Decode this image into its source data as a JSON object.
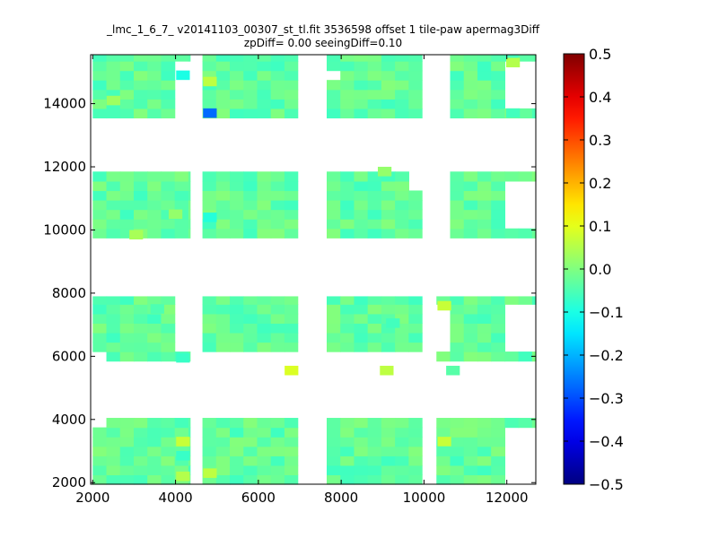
{
  "chart_data": {
    "type": "heatmap",
    "title": "_lmc_1_6_7_ v20141103_00307_st_tl.fit 3536598 offset 1 tile-paw apermag3Diff",
    "subtitle": "zpDiff= 0.00 seeingDiff=0.10",
    "xlabel": "",
    "ylabel": "",
    "xlim": [
      1950,
      12700
    ],
    "ylim": [
      1950,
      15550
    ],
    "xticks": [
      2000,
      4000,
      6000,
      8000,
      10000,
      12000
    ],
    "yticks": [
      2000,
      4000,
      6000,
      8000,
      10000,
      12000,
      14000
    ],
    "colorbar": {
      "colormap": "jet",
      "range": [
        -0.5,
        0.5
      ],
      "ticks": [
        "0.5",
        "0.4",
        "0.3",
        "0.2",
        "0.1",
        "0.0",
        "−0.1",
        "−0.2",
        "−0.3",
        "−0.4",
        "−0.5"
      ]
    },
    "grid": false,
    "cell_size": [
      330,
      300
    ],
    "column_ranges_x": [
      [
        2000,
        4350
      ],
      [
        4650,
        6950
      ],
      [
        7650,
        9950
      ],
      [
        10300,
        12700
      ]
    ],
    "row_ranges_y": [
      [
        1950,
        4050
      ],
      [
        5850,
        7900
      ],
      [
        9750,
        11850
      ],
      [
        13550,
        15550
      ]
    ],
    "typical_value": -0.03,
    "missing_patches": [
      {
        "x": [
          2000,
          2350
        ],
        "y": [
          3650,
          4050
        ]
      },
      {
        "x": [
          4000,
          4350
        ],
        "y": [
          6150,
          7900
        ]
      },
      {
        "x": [
          4000,
          4350
        ],
        "y": [
          13550,
          15250
        ]
      },
      {
        "x": [
          6650,
          6950
        ],
        "y": [
          5850,
          6150
        ]
      },
      {
        "x": [
          7650,
          8000
        ],
        "y": [
          14750,
          15050
        ]
      },
      {
        "x": [
          9500,
          9950
        ],
        "y": [
          11250,
          11850
        ]
      },
      {
        "x": [
          9350,
          9950
        ],
        "y": [
          6150,
          5850
        ]
      },
      {
        "x": [
          10300,
          10650
        ],
        "y": [
          6150,
          7600
        ]
      },
      {
        "x": [
          10300,
          10650
        ],
        "y": [
          9750,
          11850
        ]
      },
      {
        "x": [
          10300,
          10650
        ],
        "y": [
          13550,
          15550
        ]
      },
      {
        "x": [
          12000,
          12700
        ],
        "y": [
          6150,
          7600
        ]
      },
      {
        "x": [
          12000,
          12700
        ],
        "y": [
          1950,
          3650
        ]
      },
      {
        "x": [
          12000,
          12700
        ],
        "y": [
          10150,
          11550
        ]
      },
      {
        "x": [
          12000,
          12700
        ],
        "y": [
          13850,
          15250
        ]
      },
      {
        "x": [
          4650,
          6950
        ],
        "y": [
          5850,
          6150
        ]
      },
      {
        "x": [
          7650,
          9950
        ],
        "y": [
          5850,
          6150
        ]
      },
      {
        "x": [
          2000,
          2350
        ],
        "y": [
          5850,
          6150
        ]
      }
    ],
    "outliers": [
      {
        "x": 4830,
        "y": 13700,
        "value": -0.27
      },
      {
        "x": 4830,
        "y": 10400,
        "value": -0.09
      },
      {
        "x": 4180,
        "y": 14900,
        "value": -0.1
      },
      {
        "x": 4180,
        "y": 5950,
        "value": -0.07
      },
      {
        "x": 4180,
        "y": 3300,
        "value": 0.07
      },
      {
        "x": 4180,
        "y": 2850,
        "value": -0.07
      },
      {
        "x": 4180,
        "y": 2200,
        "value": 0.05
      },
      {
        "x": 4830,
        "y": 2300,
        "value": 0.06
      },
      {
        "x": 4830,
        "y": 14700,
        "value": 0.06
      },
      {
        "x": 6800,
        "y": 5550,
        "value": 0.09
      },
      {
        "x": 9100,
        "y": 5550,
        "value": 0.06
      },
      {
        "x": 10490,
        "y": 7600,
        "value": 0.07
      },
      {
        "x": 10490,
        "y": 3300,
        "value": 0.07
      },
      {
        "x": 12150,
        "y": 15300,
        "value": 0.05
      },
      {
        "x": 2500,
        "y": 14100,
        "value": 0.03
      },
      {
        "x": 3050,
        "y": 9850,
        "value": 0.04
      },
      {
        "x": 3560,
        "y": 7500,
        "value": -0.05
      },
      {
        "x": 9250,
        "y": 7050,
        "value": -0.06
      },
      {
        "x": 9050,
        "y": 11850,
        "value": 0.02
      },
      {
        "x": 12150,
        "y": 13700,
        "value": -0.06
      },
      {
        "x": 10700,
        "y": 5550,
        "value": -0.04
      },
      {
        "x": 4000,
        "y": 10500,
        "value": 0.02
      }
    ]
  }
}
